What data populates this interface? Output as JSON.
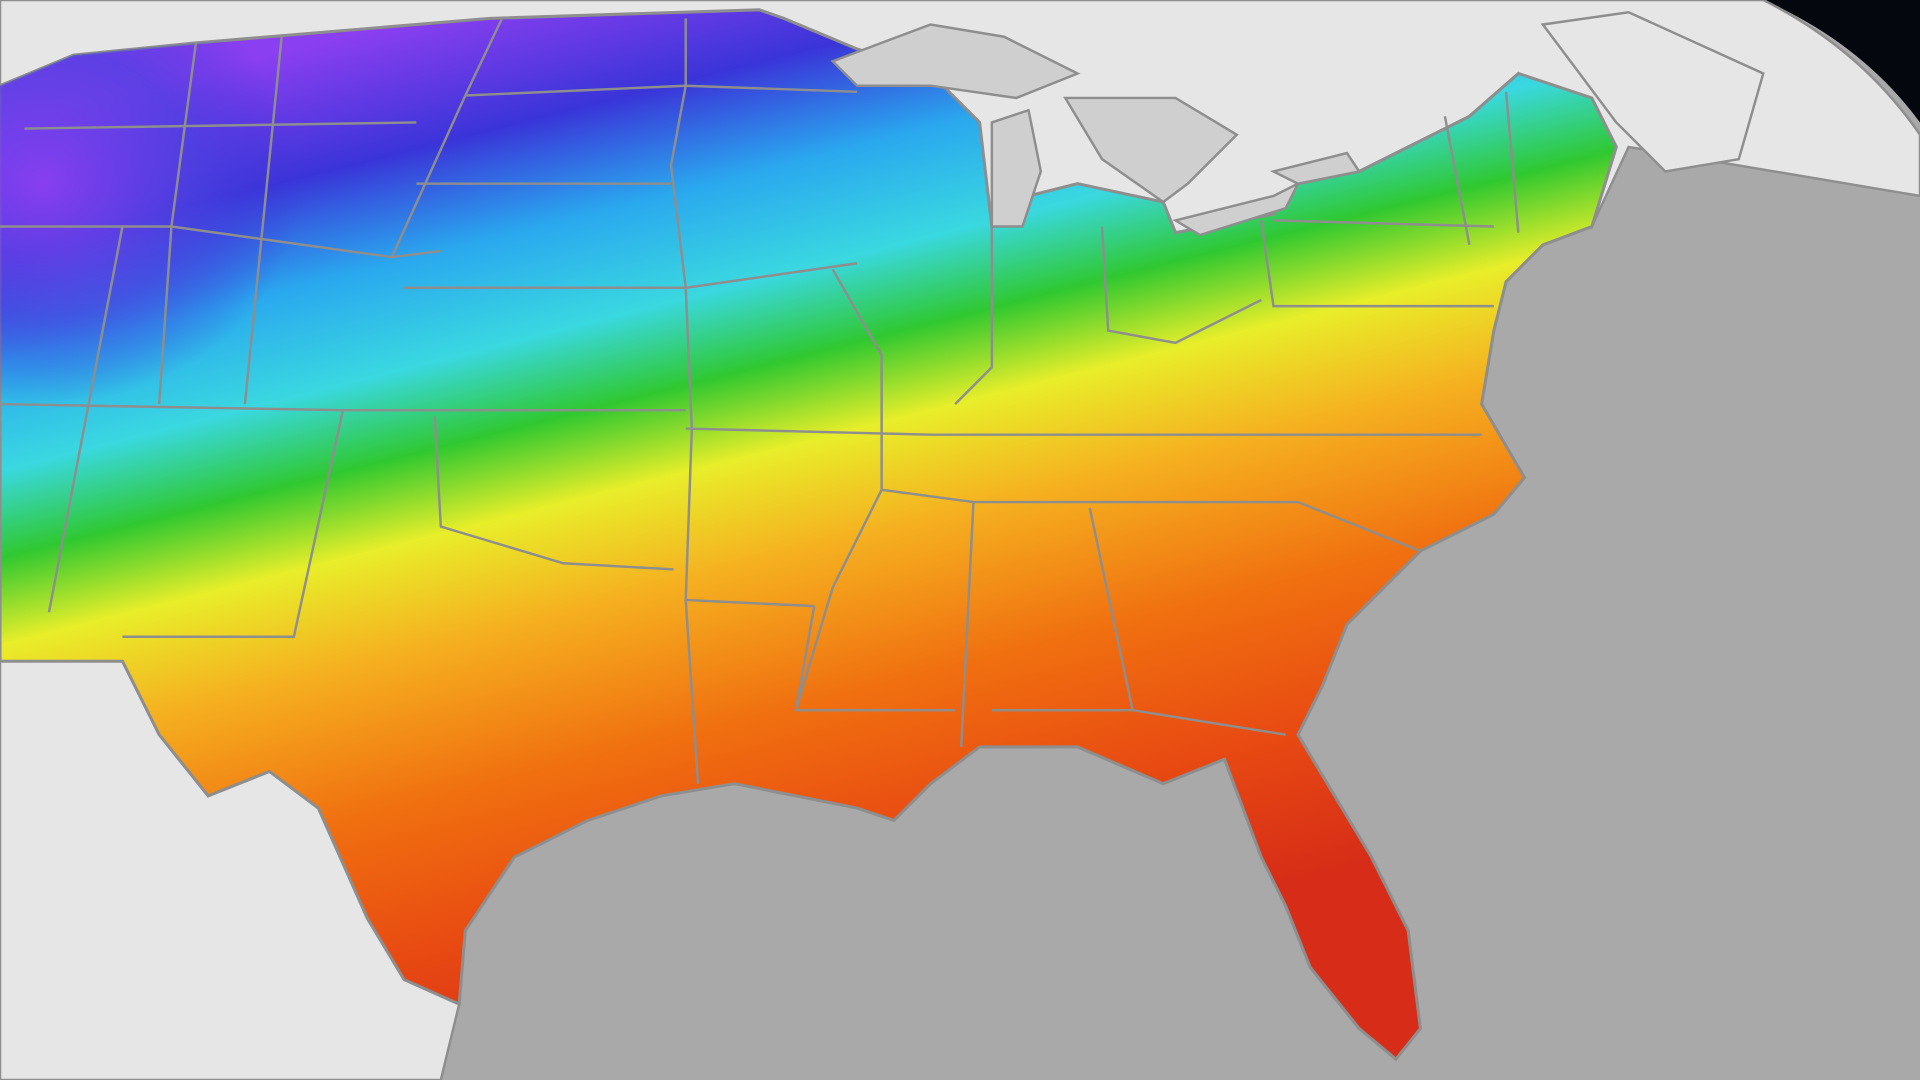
{
  "map": {
    "colors": {
      "space": "#05070f",
      "ocean": "#a9a9a9",
      "foreign_land": "#e6e6e6",
      "lakes": "#cfcfcf",
      "borders": "#8e8e8e"
    },
    "temperature_scale": [
      {
        "offset": 0.0,
        "color": "#8a3ff0"
      },
      {
        "offset": 0.12,
        "color": "#3a34d8"
      },
      {
        "offset": 0.22,
        "color": "#2aa8ee"
      },
      {
        "offset": 0.32,
        "color": "#3ad8e0"
      },
      {
        "offset": 0.4,
        "color": "#30c830"
      },
      {
        "offset": 0.48,
        "color": "#e8ee2a"
      },
      {
        "offset": 0.58,
        "color": "#f5b020"
      },
      {
        "offset": 0.72,
        "color": "#f07010"
      },
      {
        "offset": 0.86,
        "color": "#e84a12"
      },
      {
        "offset": 1.0,
        "color": "#d62c18"
      }
    ]
  }
}
